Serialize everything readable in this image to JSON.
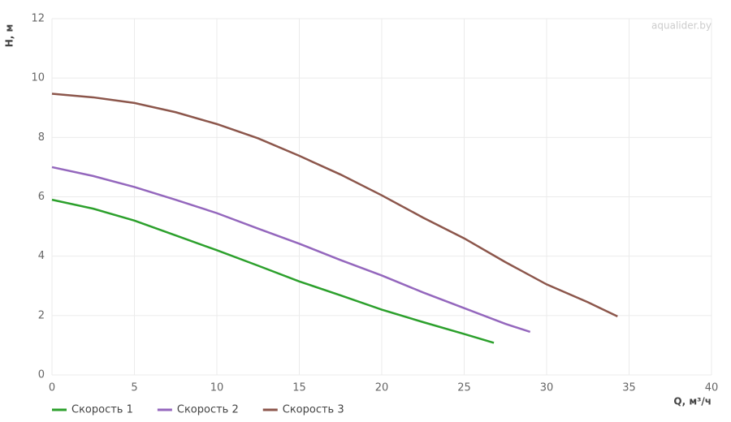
{
  "chart_data": {
    "type": "line",
    "watermark": "aqualider.by",
    "x_label": "Q, м³/ч",
    "y_label": "H, м",
    "xlim": [
      0,
      40
    ],
    "xticks": [
      0,
      5,
      10,
      15,
      20,
      25,
      30,
      35,
      40
    ],
    "ylim": [
      0,
      12
    ],
    "yticks": [
      0,
      2,
      4,
      6,
      8,
      10,
      12
    ],
    "grid": true,
    "legend": "bottom-left",
    "series": [
      {
        "name": "Скорость 1",
        "color": "#2ca02c",
        "x": [
          0,
          2.5,
          5,
          7.5,
          10,
          12.5,
          15,
          17.5,
          20,
          22.5,
          25,
          26.8
        ],
        "values": [
          5.9,
          5.6,
          5.2,
          4.7,
          4.2,
          3.68,
          3.15,
          2.68,
          2.2,
          1.78,
          1.38,
          1.08
        ]
      },
      {
        "name": "Скорость 2",
        "color": "#9467bd",
        "x": [
          0,
          2.5,
          5,
          7.5,
          10,
          12.5,
          15,
          17.5,
          20,
          22.5,
          25,
          27.5,
          29
        ],
        "values": [
          7.0,
          6.7,
          6.33,
          5.9,
          5.45,
          4.93,
          4.42,
          3.87,
          3.35,
          2.78,
          2.25,
          1.72,
          1.45
        ]
      },
      {
        "name": "Скорость 3",
        "color": "#8c564b",
        "x": [
          0,
          2.5,
          5,
          7.5,
          10,
          12.5,
          15,
          17.5,
          20,
          22.5,
          25,
          27.5,
          30,
          32.5,
          34.3
        ],
        "values": [
          9.47,
          9.35,
          9.16,
          8.85,
          8.45,
          7.97,
          7.38,
          6.75,
          6.05,
          5.3,
          4.6,
          3.8,
          3.05,
          2.45,
          1.97
        ]
      }
    ]
  }
}
